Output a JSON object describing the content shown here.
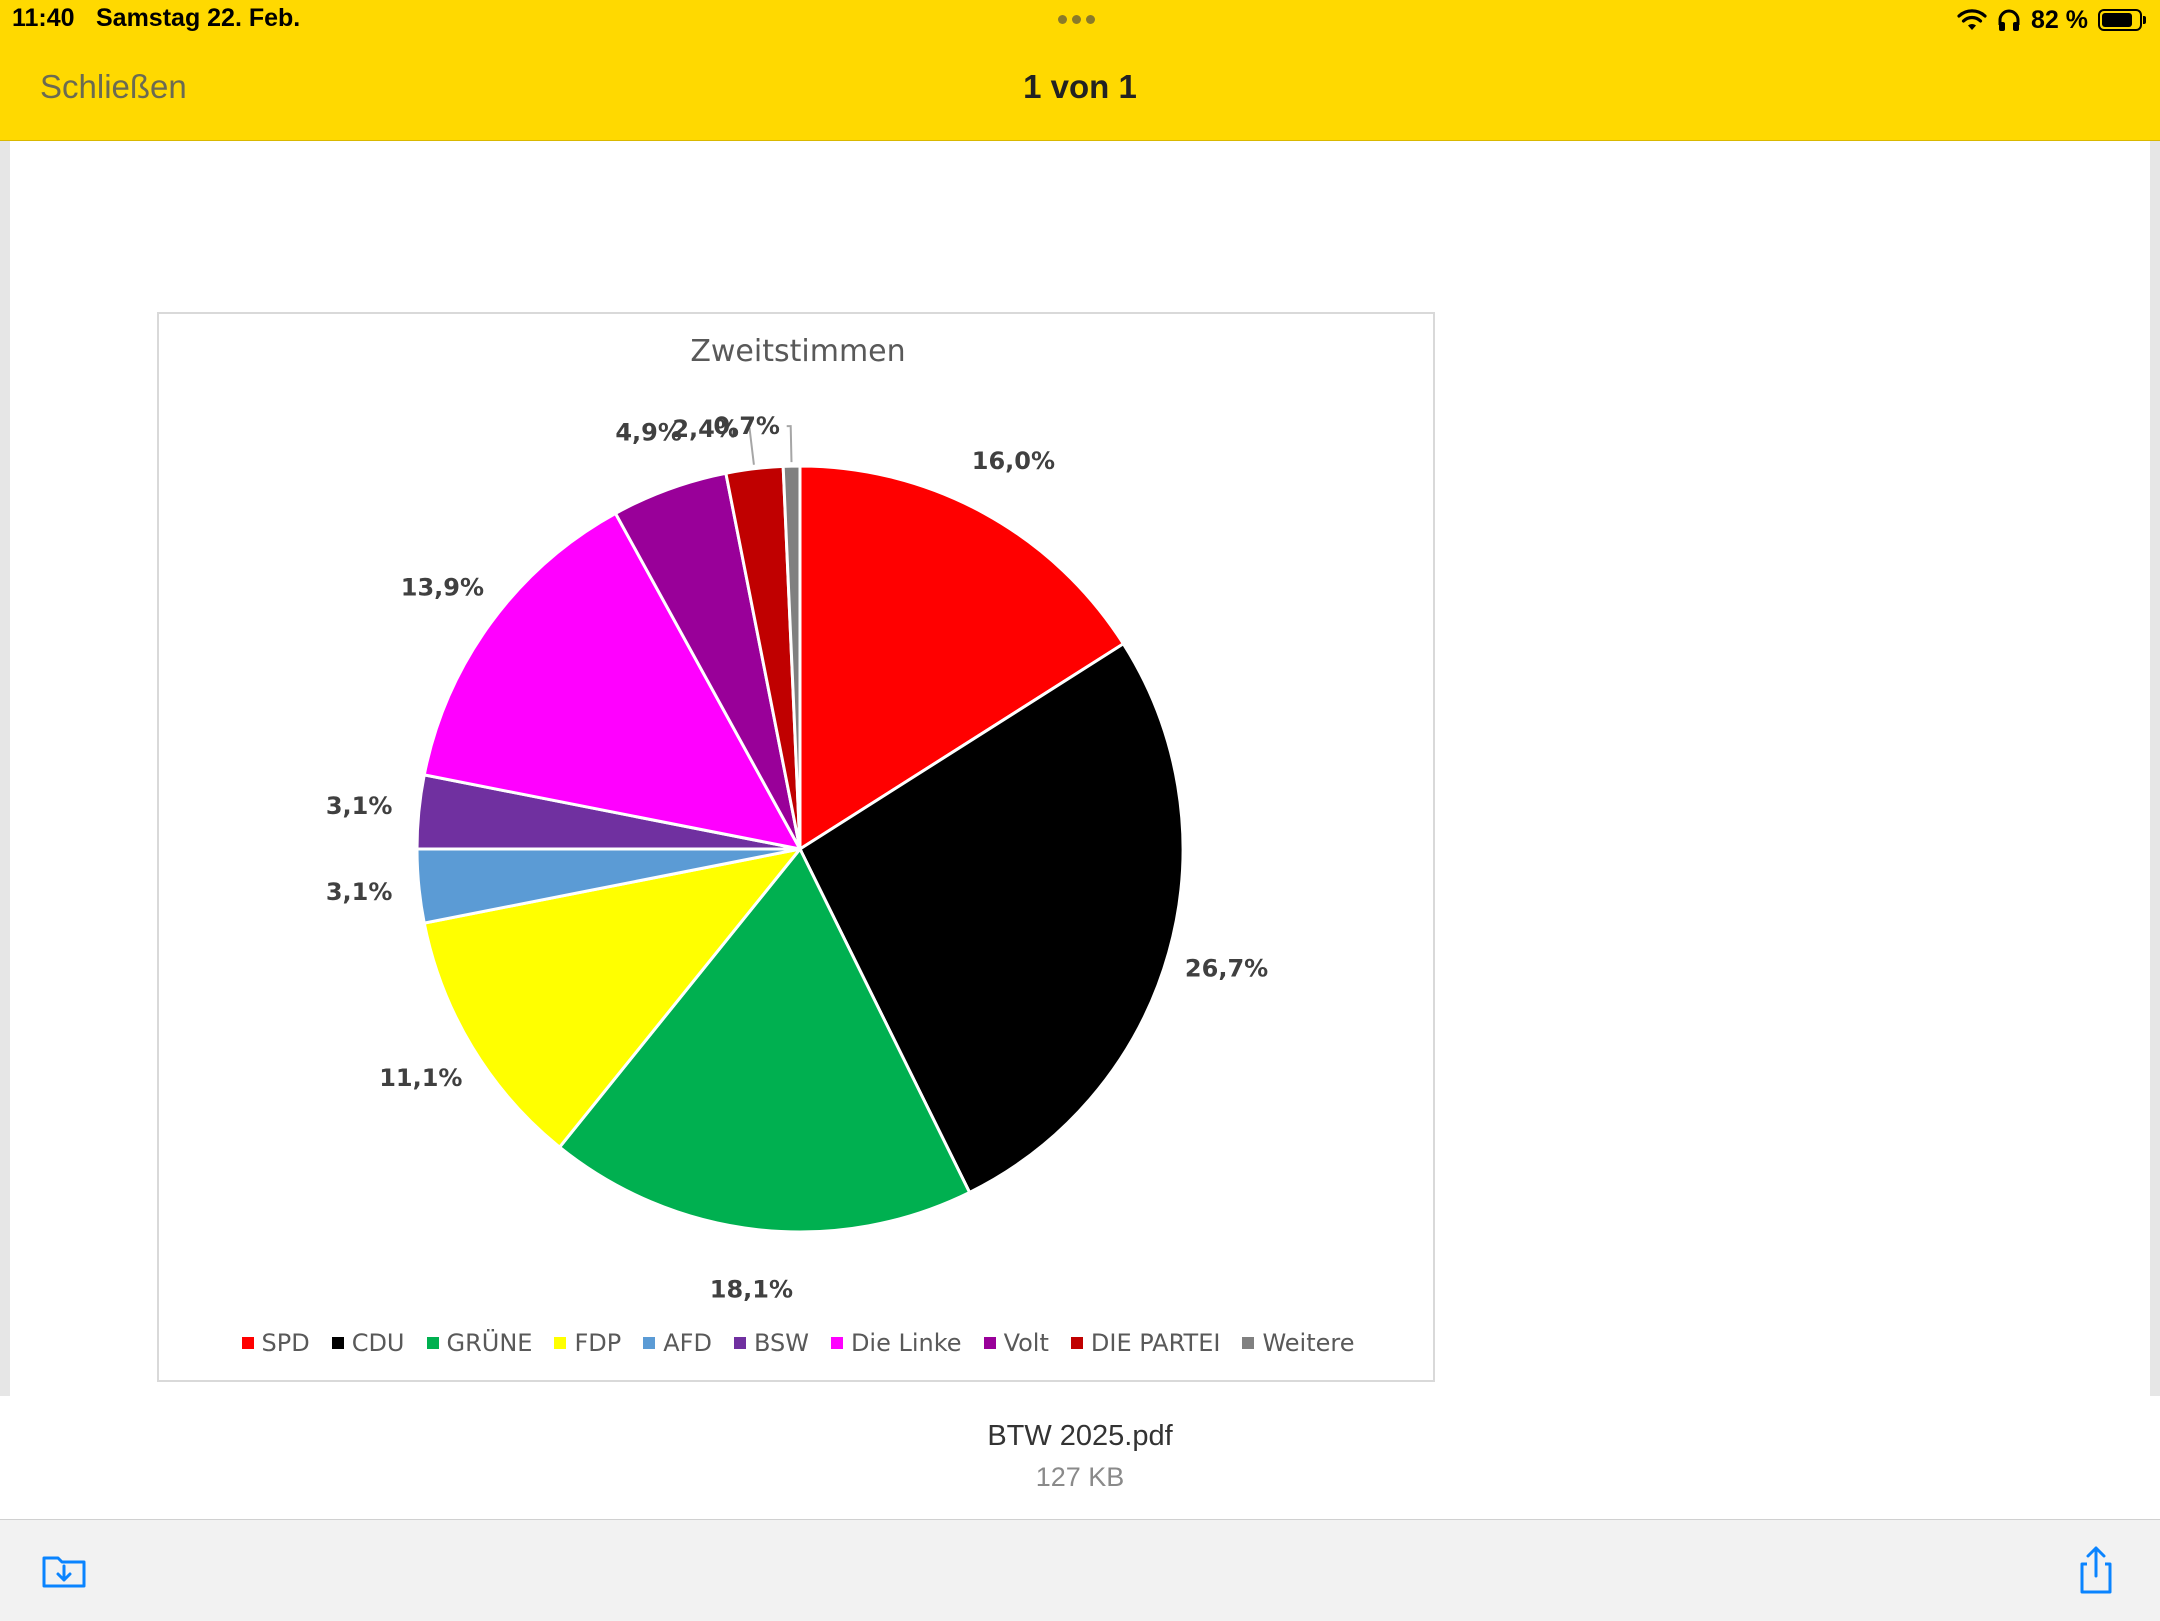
{
  "status": {
    "time": "11:40",
    "date": "Samstag 22. Feb.",
    "battery": "82 %",
    "battery_level": 0.82
  },
  "nav": {
    "close_label": "Schließen",
    "page_counter": "1 von 1"
  },
  "file": {
    "name": "BTW 2025.pdf",
    "size": "127 KB"
  },
  "chart_data": {
    "type": "pie",
    "title": "Zweitstimmen",
    "slices": [
      {
        "name": "SPD",
        "value": 16.0,
        "label": "16,0%",
        "color": "#FF0000"
      },
      {
        "name": "CDU",
        "value": 26.7,
        "label": "26,7%",
        "color": "#000000"
      },
      {
        "name": "GRÜNE",
        "value": 18.1,
        "label": "18,1%",
        "color": "#00B050"
      },
      {
        "name": "FDP",
        "value": 11.1,
        "label": "11,1%",
        "color": "#FFFF00"
      },
      {
        "name": "AFD",
        "value": 3.1,
        "label": "3,1%",
        "color": "#5B9BD5"
      },
      {
        "name": "BSW",
        "value": 3.1,
        "label": "3,1%",
        "color": "#7030A0"
      },
      {
        "name": "Die Linke",
        "value": 13.9,
        "label": "13,9%",
        "color": "#FF00FF"
      },
      {
        "name": "Volt",
        "value": 4.9,
        "label": "4,9%",
        "color": "#990099"
      },
      {
        "name": "DIE PARTEI",
        "value": 2.4,
        "label": "2,4%",
        "color": "#C00000"
      },
      {
        "name": "Weitere",
        "value": 0.7,
        "label": "0,7%",
        "color": "#808080"
      }
    ],
    "legend_position": "bottom"
  },
  "icons": {
    "save": "save-to-files-icon",
    "share": "share-icon"
  },
  "colors": {
    "bar": "#FFD900",
    "accent": "#0A84FF"
  }
}
